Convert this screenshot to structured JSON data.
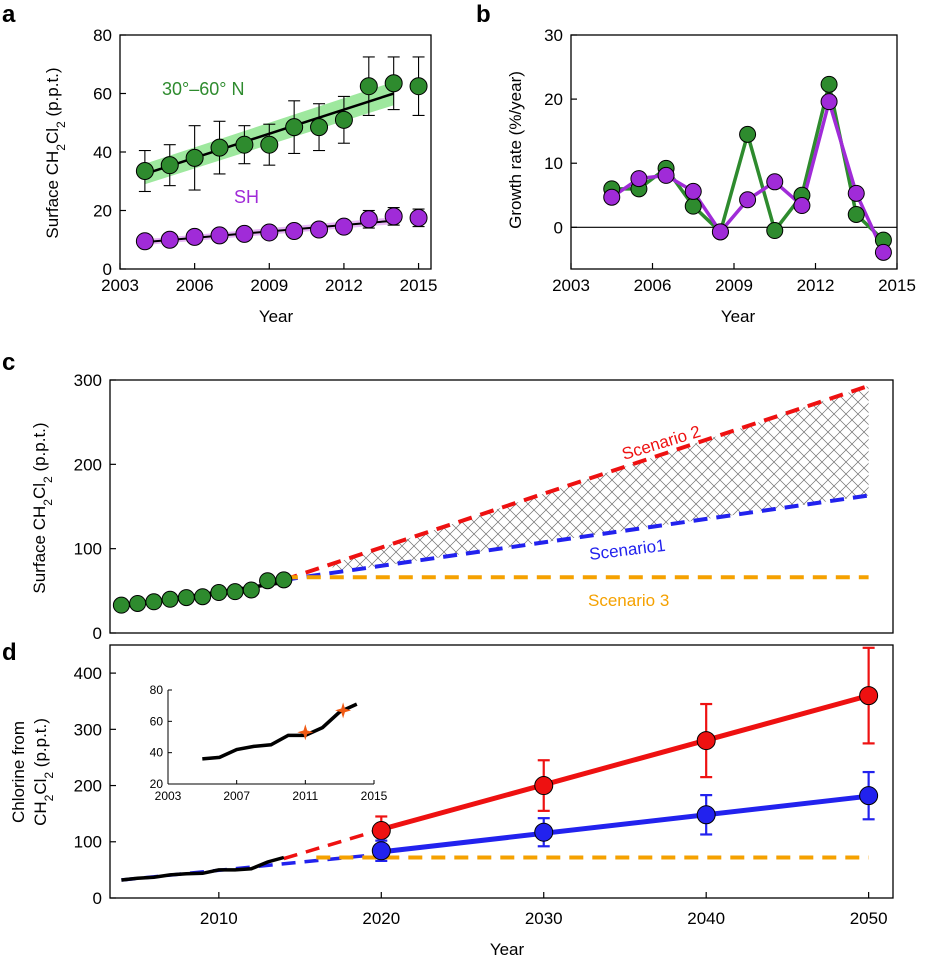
{
  "colors": {
    "green": "#2e8b2e",
    "green_light": "#9ee89e",
    "purple": "#a02bd8",
    "red": "#ee1111",
    "blue": "#2222ee",
    "orange": "#f5a100",
    "star": "#f05a14"
  },
  "panels": {
    "a": "a",
    "b": "b",
    "c": "c",
    "d": "d"
  },
  "chart_data": [
    {
      "id": "a",
      "type": "scatter",
      "title": "",
      "xlabel": "Year",
      "ylabel_main": "Surface CH",
      "ylabel_sub1": "2",
      "ylabel_mid": "Cl",
      "ylabel_sub2": "2",
      "ylabel_tail": " (p.p.t.)",
      "xlim": [
        2003,
        2015.5
      ],
      "ylim": [
        0,
        80
      ],
      "xticks": [
        2003,
        2006,
        2009,
        2012,
        2015
      ],
      "yticks": [
        0,
        20,
        40,
        60,
        80
      ],
      "series": [
        {
          "name": "30°–60° N",
          "color_key": "green",
          "x": [
            2004,
            2005,
            2006,
            2007,
            2008,
            2009,
            2010,
            2011,
            2012,
            2013,
            2014,
            2015
          ],
          "values": [
            33.5,
            35.5,
            38,
            41.5,
            42.5,
            42.5,
            48.5,
            48.5,
            51,
            62.5,
            63.5,
            62.5
          ],
          "err": [
            7,
            7,
            11,
            9,
            6.5,
            7,
            9,
            8,
            8,
            10,
            9,
            10
          ],
          "fit": {
            "x": [
              2004,
              2014
            ],
            "y": [
              32.5,
              60
            ]
          }
        },
        {
          "name": "SH",
          "color_key": "purple",
          "x": [
            2004,
            2005,
            2006,
            2007,
            2008,
            2009,
            2010,
            2011,
            2012,
            2013,
            2014,
            2015
          ],
          "values": [
            9.5,
            10,
            11,
            11.5,
            12,
            12.5,
            13,
            13.5,
            14.5,
            17,
            18,
            17.5
          ],
          "err": [
            1,
            1,
            1,
            1,
            1,
            1,
            1,
            1,
            1.5,
            3,
            3,
            3
          ],
          "fit": {
            "x": [
              2004,
              2014
            ],
            "y": [
              9.2,
              16.5
            ]
          }
        }
      ]
    },
    {
      "id": "b",
      "type": "line",
      "title": "",
      "xlabel": "Year",
      "ylabel": "Growth rate (%/year)",
      "xlim": [
        2003,
        2015
      ],
      "ylim": [
        -6.5,
        30
      ],
      "xticks": [
        2003,
        2006,
        2009,
        2012,
        2015
      ],
      "yticks": [
        0,
        10,
        20,
        30
      ],
      "series": [
        {
          "name": "30°–60° N",
          "color_key": "green",
          "x": [
            2004.5,
            2005.5,
            2006.5,
            2007.5,
            2008.5,
            2009.5,
            2010.5,
            2011.5,
            2012.5,
            2013.5,
            2014.5
          ],
          "values": [
            6,
            6,
            9.2,
            3.3,
            -0.7,
            14.5,
            -0.5,
            5,
            22.3,
            2,
            -2
          ]
        },
        {
          "name": "SH",
          "color_key": "purple",
          "x": [
            2004.5,
            2005.5,
            2006.5,
            2007.5,
            2008.5,
            2009.5,
            2010.5,
            2011.5,
            2012.5,
            2013.5,
            2014.5
          ],
          "values": [
            4.7,
            7.6,
            8.1,
            5.6,
            -0.7,
            4.3,
            7.1,
            3.4,
            19.6,
            5.3,
            -3.9
          ]
        }
      ]
    },
    {
      "id": "c",
      "type": "line",
      "title": "",
      "xlabel": "",
      "ylabel_main": "Surface CH",
      "ylabel_sub1": "2",
      "ylabel_mid": "Cl",
      "ylabel_sub2": "2",
      "ylabel_tail": " (p.p.t.)",
      "xlim": [
        2003.3,
        2051.5
      ],
      "ylim": [
        0,
        300
      ],
      "yticks": [
        0,
        100,
        200,
        300
      ],
      "observed": {
        "x": [
          2004,
          2005,
          2006,
          2007,
          2008,
          2009,
          2010,
          2011,
          2012,
          2013,
          2014
        ],
        "values": [
          33,
          35,
          37,
          40,
          42,
          43,
          48,
          49,
          51,
          62,
          63
        ]
      },
      "observed_fit": {
        "x": [
          2004,
          2014
        ],
        "y": [
          31.5,
          60
        ]
      },
      "scenarios": [
        {
          "name": "Scenario 2",
          "color_key": "red",
          "x": [
            2014,
            2050
          ],
          "y": [
            63,
            293
          ]
        },
        {
          "name": "Scenario1",
          "color_key": "blue",
          "x": [
            2014,
            2050
          ],
          "y": [
            63,
            163
          ]
        },
        {
          "name": "Scenario 3",
          "color_key": "orange",
          "x": [
            2014,
            2050
          ],
          "y": [
            66,
            66
          ]
        }
      ]
    },
    {
      "id": "d",
      "type": "line",
      "title": "",
      "xlabel": "Year",
      "ylabel_line1": "Chlorine from",
      "ylabel_main": "CH",
      "ylabel_sub1": "2",
      "ylabel_mid": "Cl",
      "ylabel_sub2": "2",
      "ylabel_tail": " (p.p.t.)",
      "xlim": [
        2003.3,
        2051.5
      ],
      "ylim": [
        0,
        450
      ],
      "xticks": [
        2010,
        2020,
        2030,
        2040,
        2050
      ],
      "yticks": [
        0,
        100,
        200,
        300,
        400
      ],
      "observed": {
        "x": [
          2004,
          2005,
          2006,
          2007,
          2008,
          2009,
          2010,
          2011,
          2012,
          2013,
          2014
        ],
        "values": [
          32,
          35,
          37,
          41,
          43,
          44,
          50,
          50,
          52,
          64,
          72
        ]
      },
      "red_dashed": {
        "x": [
          2014,
          2020
        ],
        "y": [
          70,
          122
        ]
      },
      "red_solid": {
        "x": [
          2020,
          2050
        ],
        "y": [
          122,
          360
        ]
      },
      "blue_dashed": {
        "x": [
          2004,
          2020
        ],
        "y": [
          32,
          78
        ]
      },
      "blue_solid": {
        "x": [
          2020,
          2050
        ],
        "y": [
          82,
          181
        ]
      },
      "orange_dashed": {
        "x": [
          2016,
          2050
        ],
        "y": [
          72,
          72
        ]
      },
      "red_points": {
        "x": [
          2020,
          2030,
          2040,
          2050
        ],
        "values": [
          120,
          200,
          280,
          360
        ],
        "err": [
          25,
          45,
          65,
          85
        ]
      },
      "blue_points": {
        "x": [
          2020,
          2030,
          2040,
          2050
        ],
        "values": [
          84,
          117,
          148,
          182
        ],
        "err": [
          18,
          25,
          35,
          42
        ]
      },
      "inset": {
        "xlim": [
          2003,
          2015
        ],
        "ylim": [
          20,
          80
        ],
        "xticks": [
          2003,
          2007,
          2011,
          2015
        ],
        "yticks": [
          20,
          40,
          60,
          80
        ],
        "x": [
          2005,
          2006,
          2007,
          2008,
          2009,
          2010,
          2011,
          2012,
          2013,
          2014
        ],
        "values": [
          36,
          37,
          42,
          44,
          45,
          51,
          51,
          56,
          66,
          71
        ],
        "stars": {
          "x": [
            2011,
            2013.2
          ],
          "values": [
            53,
            67
          ]
        }
      }
    }
  ]
}
